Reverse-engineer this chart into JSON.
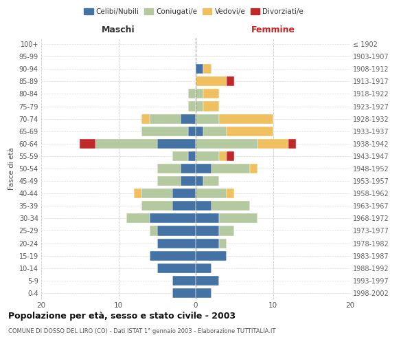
{
  "age_groups": [
    "0-4",
    "5-9",
    "10-14",
    "15-19",
    "20-24",
    "25-29",
    "30-34",
    "35-39",
    "40-44",
    "45-49",
    "50-54",
    "55-59",
    "60-64",
    "65-69",
    "70-74",
    "75-79",
    "80-84",
    "85-89",
    "90-94",
    "95-99",
    "100+"
  ],
  "birth_years": [
    "1998-2002",
    "1993-1997",
    "1988-1992",
    "1983-1987",
    "1978-1982",
    "1973-1977",
    "1968-1972",
    "1963-1967",
    "1958-1962",
    "1953-1957",
    "1948-1952",
    "1943-1947",
    "1938-1942",
    "1933-1937",
    "1928-1932",
    "1923-1927",
    "1918-1922",
    "1913-1917",
    "1908-1912",
    "1903-1907",
    "≤ 1902"
  ],
  "maschi": {
    "celibi": [
      3,
      3,
      5,
      6,
      5,
      5,
      6,
      3,
      3,
      2,
      2,
      1,
      5,
      1,
      2,
      0,
      0,
      0,
      0,
      0,
      0
    ],
    "coniugati": [
      0,
      0,
      0,
      0,
      0,
      1,
      3,
      4,
      4,
      3,
      3,
      2,
      8,
      6,
      4,
      1,
      1,
      0,
      0,
      0,
      0
    ],
    "vedovi": [
      0,
      0,
      0,
      0,
      0,
      0,
      0,
      0,
      1,
      0,
      0,
      0,
      0,
      0,
      1,
      0,
      0,
      0,
      0,
      0,
      0
    ],
    "divorziati": [
      0,
      0,
      0,
      0,
      0,
      0,
      0,
      0,
      0,
      0,
      0,
      0,
      2,
      0,
      0,
      0,
      0,
      0,
      0,
      0,
      0
    ]
  },
  "femmine": {
    "nubili": [
      2,
      3,
      2,
      4,
      3,
      3,
      3,
      2,
      0,
      1,
      2,
      0,
      0,
      1,
      0,
      0,
      0,
      0,
      1,
      0,
      0
    ],
    "coniugate": [
      0,
      0,
      0,
      0,
      1,
      2,
      5,
      5,
      4,
      2,
      5,
      3,
      8,
      3,
      3,
      1,
      1,
      0,
      0,
      0,
      0
    ],
    "vedove": [
      0,
      0,
      0,
      0,
      0,
      0,
      0,
      0,
      1,
      0,
      1,
      1,
      4,
      6,
      7,
      2,
      2,
      4,
      1,
      0,
      0
    ],
    "divorziate": [
      0,
      0,
      0,
      0,
      0,
      0,
      0,
      0,
      0,
      0,
      0,
      1,
      1,
      0,
      0,
      0,
      0,
      1,
      0,
      0,
      0
    ]
  },
  "colors": {
    "celibi_nubili": "#4472a4",
    "coniugati": "#b5c9a0",
    "vedovi": "#f0c060",
    "divorziati": "#c0282a"
  },
  "xlim": 20,
  "title": "Popolazione per età, sesso e stato civile - 2003",
  "subtitle": "COMUNE DI DOSSO DEL LIRO (CO) - Dati ISTAT 1° gennaio 2003 - Elaborazione TUTTITALIA.IT",
  "ylabel_left": "Fasce di età",
  "xlabel_left": "Maschi",
  "xlabel_right": "Femmine"
}
